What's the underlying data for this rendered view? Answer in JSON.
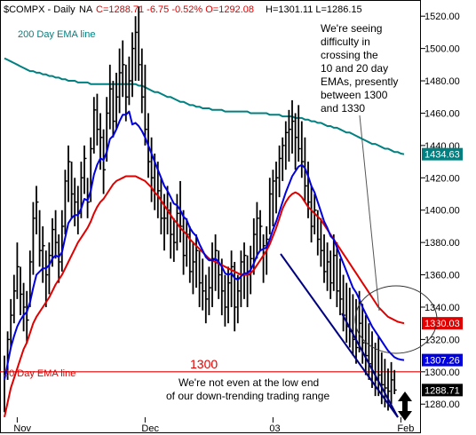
{
  "header": {
    "symbol": "$COMPX - Daily",
    "na": "NA",
    "stats": "C=1288.71  -6.75  -0.52%  O=1292.08",
    "hl": "H=1301.11  L=1286.15"
  },
  "colors": {
    "background": "#ffffff",
    "price_bar": "#000000",
    "ema10": "#0000e0",
    "ema20": "#e00000",
    "ema200": "#008080",
    "ref_line": "#e00000",
    "trend_line": "#000080",
    "grid": "#c0c0c0",
    "tag_ema200": "#008080",
    "tag_ema20": "#e00000",
    "tag_ema10": "#0000e0",
    "tag_close": "#000000"
  },
  "annotations": {
    "ema200_label": "200 Day EMA line",
    "ema20_label": "20 Day EMA line",
    "ref_label": "1300",
    "note_top": [
      "We're seeing",
      "difficulty in",
      "crossing the",
      "10 and 20 day",
      "EMAs, presently",
      "between 1300",
      "and 1330"
    ],
    "note_bottom": [
      "We're not even at the low end",
      "of our down-trending trading range"
    ]
  },
  "chart_data": {
    "type": "line",
    "title": "$COMPX - Daily",
    "xlabel": "",
    "ylabel": "",
    "ylim": [
      1262,
      1530
    ],
    "yticks": [
      1280,
      1300,
      1320,
      1340,
      1360,
      1380,
      1400,
      1420,
      1440,
      1460,
      1480,
      1500,
      1520
    ],
    "ytick_labels": [
      "1280.00",
      "1300.00",
      "1320.00",
      "1340.00",
      "1360.00",
      "1380.00",
      "1400.00",
      "1420.00",
      "1440.00",
      "1460.00",
      "1480.00",
      "1500.00",
      "1520.00"
    ],
    "xticks": [
      {
        "label": "Nov",
        "index": 4
      },
      {
        "label": "Dec",
        "index": 44
      },
      {
        "label": "03",
        "index": 84
      },
      {
        "label": "Feb",
        "index": 124
      }
    ],
    "grid": true,
    "last_values": {
      "ema200": "1434.63",
      "ema20": "1330.03",
      "ema10": "1307.26",
      "close": "1288.71"
    },
    "reference_line": 1300,
    "price_bars": [
      {
        "h": 1310,
        "l": 1275,
        "c": 1300
      },
      {
        "h": 1325,
        "l": 1295,
        "c": 1320
      },
      {
        "h": 1345,
        "l": 1315,
        "c": 1335
      },
      {
        "h": 1360,
        "l": 1330,
        "c": 1350
      },
      {
        "h": 1380,
        "l": 1345,
        "c": 1365
      },
      {
        "h": 1365,
        "l": 1335,
        "c": 1348
      },
      {
        "h": 1355,
        "l": 1325,
        "c": 1340
      },
      {
        "h": 1350,
        "l": 1318,
        "c": 1332
      },
      {
        "h": 1375,
        "l": 1340,
        "c": 1368
      },
      {
        "h": 1405,
        "l": 1360,
        "c": 1395
      },
      {
        "h": 1415,
        "l": 1385,
        "c": 1405
      },
      {
        "h": 1400,
        "l": 1365,
        "c": 1375
      },
      {
        "h": 1390,
        "l": 1355,
        "c": 1378
      },
      {
        "h": 1375,
        "l": 1340,
        "c": 1360
      },
      {
        "h": 1380,
        "l": 1348,
        "c": 1372
      },
      {
        "h": 1395,
        "l": 1365,
        "c": 1388
      },
      {
        "h": 1400,
        "l": 1370,
        "c": 1380
      },
      {
        "h": 1385,
        "l": 1355,
        "c": 1368
      },
      {
        "h": 1400,
        "l": 1362,
        "c": 1390
      },
      {
        "h": 1425,
        "l": 1385,
        "c": 1418
      },
      {
        "h": 1440,
        "l": 1405,
        "c": 1430
      },
      {
        "h": 1430,
        "l": 1395,
        "c": 1410
      },
      {
        "h": 1420,
        "l": 1390,
        "c": 1405
      },
      {
        "h": 1415,
        "l": 1385,
        "c": 1398
      },
      {
        "h": 1430,
        "l": 1395,
        "c": 1420
      },
      {
        "h": 1440,
        "l": 1410,
        "c": 1432
      },
      {
        "h": 1420,
        "l": 1395,
        "c": 1405
      },
      {
        "h": 1445,
        "l": 1405,
        "c": 1438
      },
      {
        "h": 1470,
        "l": 1435,
        "c": 1462
      },
      {
        "h": 1472,
        "l": 1440,
        "c": 1450
      },
      {
        "h": 1460,
        "l": 1425,
        "c": 1445
      },
      {
        "h": 1450,
        "l": 1410,
        "c": 1425
      },
      {
        "h": 1470,
        "l": 1430,
        "c": 1460
      },
      {
        "h": 1490,
        "l": 1450,
        "c": 1475
      },
      {
        "h": 1480,
        "l": 1445,
        "c": 1455
      },
      {
        "h": 1485,
        "l": 1450,
        "c": 1470
      },
      {
        "h": 1500,
        "l": 1460,
        "c": 1485
      },
      {
        "h": 1505,
        "l": 1470,
        "c": 1490
      },
      {
        "h": 1490,
        "l": 1455,
        "c": 1470
      },
      {
        "h": 1495,
        "l": 1465,
        "c": 1480
      },
      {
        "h": 1510,
        "l": 1470,
        "c": 1500
      },
      {
        "h": 1520,
        "l": 1480,
        "c": 1510
      },
      {
        "h": 1526,
        "l": 1480,
        "c": 1490
      },
      {
        "h": 1500,
        "l": 1460,
        "c": 1470
      },
      {
        "h": 1490,
        "l": 1440,
        "c": 1450
      },
      {
        "h": 1460,
        "l": 1420,
        "c": 1430
      },
      {
        "h": 1445,
        "l": 1405,
        "c": 1420
      },
      {
        "h": 1435,
        "l": 1400,
        "c": 1410
      },
      {
        "h": 1430,
        "l": 1395,
        "c": 1412
      },
      {
        "h": 1420,
        "l": 1385,
        "c": 1395
      },
      {
        "h": 1410,
        "l": 1375,
        "c": 1395
      },
      {
        "h": 1415,
        "l": 1385,
        "c": 1400
      },
      {
        "h": 1405,
        "l": 1370,
        "c": 1385
      },
      {
        "h": 1395,
        "l": 1368,
        "c": 1380
      },
      {
        "h": 1410,
        "l": 1375,
        "c": 1398
      },
      {
        "h": 1418,
        "l": 1380,
        "c": 1390
      },
      {
        "h": 1400,
        "l": 1360,
        "c": 1372
      },
      {
        "h": 1395,
        "l": 1365,
        "c": 1385
      },
      {
        "h": 1390,
        "l": 1355,
        "c": 1362
      },
      {
        "h": 1380,
        "l": 1348,
        "c": 1368
      },
      {
        "h": 1385,
        "l": 1352,
        "c": 1375
      },
      {
        "h": 1375,
        "l": 1340,
        "c": 1355
      },
      {
        "h": 1370,
        "l": 1338,
        "c": 1350
      },
      {
        "h": 1360,
        "l": 1330,
        "c": 1345
      },
      {
        "h": 1365,
        "l": 1335,
        "c": 1352
      },
      {
        "h": 1380,
        "l": 1340,
        "c": 1370
      },
      {
        "h": 1385,
        "l": 1350,
        "c": 1375
      },
      {
        "h": 1375,
        "l": 1345,
        "c": 1360
      },
      {
        "h": 1370,
        "l": 1335,
        "c": 1350
      },
      {
        "h": 1360,
        "l": 1328,
        "c": 1340
      },
      {
        "h": 1365,
        "l": 1330,
        "c": 1355
      },
      {
        "h": 1375,
        "l": 1340,
        "c": 1365
      },
      {
        "h": 1368,
        "l": 1325,
        "c": 1340
      },
      {
        "h": 1360,
        "l": 1330,
        "c": 1350
      },
      {
        "h": 1375,
        "l": 1340,
        "c": 1368
      },
      {
        "h": 1380,
        "l": 1345,
        "c": 1372
      },
      {
        "h": 1372,
        "l": 1340,
        "c": 1360
      },
      {
        "h": 1378,
        "l": 1348,
        "c": 1370
      },
      {
        "h": 1395,
        "l": 1360,
        "c": 1385
      },
      {
        "h": 1405,
        "l": 1370,
        "c": 1395
      },
      {
        "h": 1400,
        "l": 1375,
        "c": 1390
      },
      {
        "h": 1385,
        "l": 1355,
        "c": 1378
      },
      {
        "h": 1390,
        "l": 1360,
        "c": 1382
      },
      {
        "h": 1420,
        "l": 1385,
        "c": 1410
      },
      {
        "h": 1425,
        "l": 1390,
        "c": 1418
      },
      {
        "h": 1430,
        "l": 1398,
        "c": 1420
      },
      {
        "h": 1440,
        "l": 1408,
        "c": 1432
      },
      {
        "h": 1445,
        "l": 1418,
        "c": 1440
      },
      {
        "h": 1455,
        "l": 1425,
        "c": 1448
      },
      {
        "h": 1462,
        "l": 1430,
        "c": 1450
      },
      {
        "h": 1468,
        "l": 1435,
        "c": 1455
      },
      {
        "h": 1460,
        "l": 1425,
        "c": 1445
      },
      {
        "h": 1465,
        "l": 1430,
        "c": 1438
      },
      {
        "h": 1455,
        "l": 1420,
        "c": 1430
      },
      {
        "h": 1445,
        "l": 1405,
        "c": 1415
      },
      {
        "h": 1430,
        "l": 1395,
        "c": 1405
      },
      {
        "h": 1415,
        "l": 1380,
        "c": 1390
      },
      {
        "h": 1410,
        "l": 1385,
        "c": 1400
      },
      {
        "h": 1400,
        "l": 1372,
        "c": 1382
      },
      {
        "h": 1395,
        "l": 1365,
        "c": 1375
      },
      {
        "h": 1385,
        "l": 1355,
        "c": 1362
      },
      {
        "h": 1380,
        "l": 1350,
        "c": 1368
      },
      {
        "h": 1375,
        "l": 1345,
        "c": 1355
      },
      {
        "h": 1385,
        "l": 1350,
        "c": 1372
      },
      {
        "h": 1380,
        "l": 1340,
        "c": 1350
      },
      {
        "h": 1370,
        "l": 1335,
        "c": 1345
      },
      {
        "h": 1360,
        "l": 1325,
        "c": 1335
      },
      {
        "h": 1355,
        "l": 1318,
        "c": 1328
      },
      {
        "h": 1352,
        "l": 1315,
        "c": 1325
      },
      {
        "h": 1348,
        "l": 1310,
        "c": 1320
      },
      {
        "h": 1345,
        "l": 1305,
        "c": 1315
      },
      {
        "h": 1350,
        "l": 1312,
        "c": 1330
      },
      {
        "h": 1342,
        "l": 1305,
        "c": 1318
      },
      {
        "h": 1335,
        "l": 1298,
        "c": 1310
      },
      {
        "h": 1330,
        "l": 1295,
        "c": 1305
      },
      {
        "h": 1325,
        "l": 1290,
        "c": 1300
      },
      {
        "h": 1318,
        "l": 1285,
        "c": 1295
      },
      {
        "h": 1322,
        "l": 1285,
        "c": 1298
      },
      {
        "h": 1312,
        "l": 1280,
        "c": 1292
      },
      {
        "h": 1308,
        "l": 1278,
        "c": 1290
      },
      {
        "h": 1302,
        "l": 1276,
        "c": 1288
      },
      {
        "h": 1306,
        "l": 1280,
        "c": 1295
      },
      {
        "h": 1301.11,
        "l": 1286.15,
        "c": 1288.71
      }
    ],
    "series": [
      {
        "name": "200 Day EMA line",
        "values": [
          1494,
          1493,
          1492,
          1491,
          1490,
          1489,
          1488,
          1487,
          1486,
          1486,
          1485,
          1485,
          1484,
          1484,
          1483,
          1483,
          1482,
          1482,
          1481,
          1481,
          1480,
          1480,
          1480,
          1479,
          1479,
          1479,
          1479,
          1478,
          1478,
          1478,
          1478,
          1478,
          1478,
          1478,
          1478,
          1478,
          1478,
          1478,
          1478,
          1478,
          1478,
          1478,
          1477,
          1477,
          1476,
          1475,
          1474,
          1473,
          1473,
          1472,
          1471,
          1470,
          1470,
          1469,
          1468,
          1467,
          1467,
          1466,
          1465,
          1465,
          1464,
          1464,
          1463,
          1463,
          1463,
          1462,
          1462,
          1462,
          1462,
          1461,
          1461,
          1461,
          1461,
          1461,
          1461,
          1461,
          1461,
          1460,
          1460,
          1460,
          1460,
          1460,
          1460,
          1459,
          1459,
          1459,
          1459,
          1458,
          1458,
          1458,
          1458,
          1457,
          1457,
          1457,
          1456,
          1456,
          1455,
          1455,
          1454,
          1454,
          1453,
          1452,
          1452,
          1451,
          1451,
          1450,
          1449,
          1448,
          1448,
          1447,
          1446,
          1445,
          1444,
          1443,
          1442,
          1441,
          1441,
          1440,
          1439,
          1438,
          1438,
          1437,
          1436,
          1436,
          1435,
          1434.63
        ]
      },
      {
        "name": "20 Day EMA line",
        "values": [
          1272,
          1281,
          1290,
          1296,
          1302,
          1308,
          1314,
          1318,
          1324,
          1330,
          1334,
          1337,
          1340,
          1343,
          1346,
          1350,
          1354,
          1357,
          1360,
          1364,
          1368,
          1372,
          1376,
          1380,
          1383,
          1386,
          1389,
          1393,
          1398,
          1402,
          1405,
          1407,
          1410,
          1413,
          1416,
          1418,
          1419,
          1420,
          1421,
          1421,
          1421,
          1421,
          1420,
          1419,
          1418,
          1416,
          1414,
          1411,
          1409,
          1406,
          1403,
          1400,
          1397,
          1394,
          1392,
          1389,
          1387,
          1385,
          1382,
          1380,
          1378,
          1376,
          1374,
          1372,
          1370,
          1369,
          1368,
          1367,
          1366,
          1365,
          1364,
          1363,
          1362,
          1361,
          1360,
          1360,
          1360,
          1361,
          1363,
          1366,
          1369,
          1372,
          1375,
          1379,
          1384,
          1389,
          1395,
          1401,
          1405,
          1408,
          1410,
          1411,
          1410,
          1408,
          1405,
          1402,
          1400,
          1398,
          1396,
          1394,
          1391,
          1388,
          1385,
          1382,
          1379,
          1376,
          1373,
          1370,
          1367,
          1364,
          1361,
          1358,
          1355,
          1352,
          1349,
          1346,
          1343,
          1340,
          1338,
          1336,
          1334,
          1333,
          1332,
          1331,
          1330.5,
          1330.03
        ]
      },
      {
        "name": "10 Day EMA",
        "values": [
          1295,
          1305,
          1315,
          1322,
          1328,
          1332,
          1335,
          1337,
          1343,
          1352,
          1360,
          1362,
          1364,
          1364,
          1366,
          1370,
          1372,
          1371,
          1374,
          1383,
          1392,
          1395,
          1397,
          1397,
          1401,
          1407,
          1406,
          1412,
          1422,
          1428,
          1432,
          1431,
          1436,
          1444,
          1446,
          1450,
          1455,
          1459,
          1459,
          1461,
          1453,
          1454,
          1452,
          1449,
          1445,
          1440,
          1435,
          1430,
          1425,
          1420,
          1415,
          1412,
          1408,
          1404,
          1403,
          1400,
          1396,
          1394,
          1389,
          1386,
          1384,
          1379,
          1375,
          1371,
          1369,
          1369,
          1370,
          1368,
          1365,
          1361,
          1360,
          1361,
          1358,
          1357,
          1359,
          1361,
          1361,
          1363,
          1367,
          1372,
          1375,
          1376,
          1377,
          1382,
          1388,
          1393,
          1399,
          1405,
          1411,
          1416,
          1421,
          1424,
          1427,
          1428,
          1426,
          1421,
          1415,
          1411,
          1405,
          1399,
          1393,
          1389,
          1384,
          1382,
          1377,
          1372,
          1367,
          1362,
          1357,
          1352,
          1349,
          1345,
          1340,
          1336,
          1332,
          1328,
          1325,
          1322,
          1319,
          1316,
          1313,
          1311,
          1309,
          1308,
          1307.5,
          1307.26
        ]
      }
    ]
  }
}
